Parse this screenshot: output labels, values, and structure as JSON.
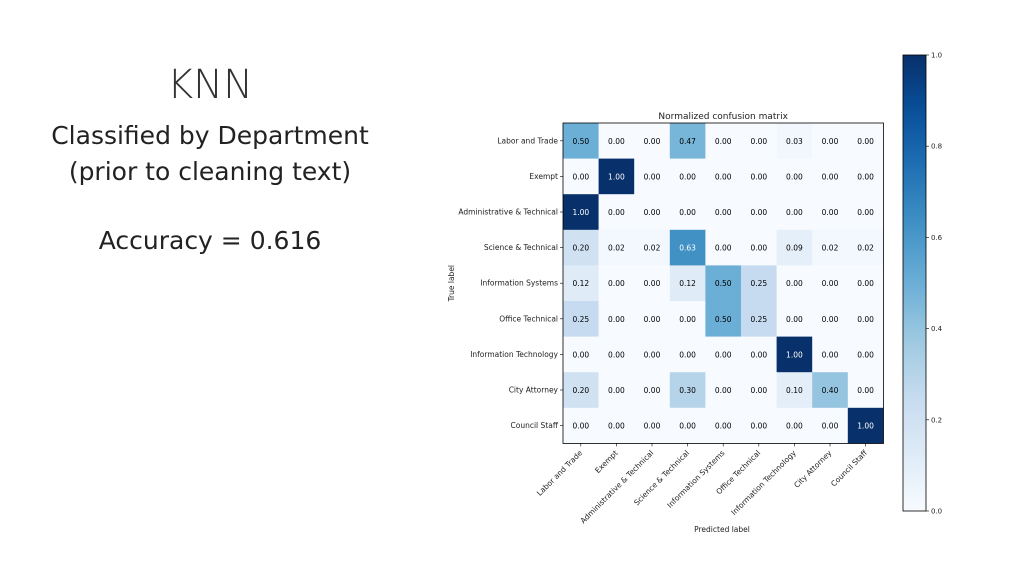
{
  "slide": {
    "title": "KNN",
    "subtitle_line1": "Classified by Department",
    "subtitle_line2": "(prior to cleaning text)",
    "accuracy": "Accuracy = 0.616"
  },
  "colors": {
    "low": "#f7fbff",
    "high": "#08306b",
    "text_dark": "#000000",
    "text_light": "#ffffff"
  },
  "chart_data": {
    "type": "heatmap",
    "title": "Normalized confusion matrix",
    "xlabel": "Predicted label",
    "ylabel": "True label",
    "rows": [
      "Labor and Trade",
      "Exempt",
      "Administrative & Technical",
      "Science & Technical",
      "Information Systems",
      "Office Technical",
      "Information Technology",
      "City Attorney",
      "Council Staff"
    ],
    "cols": [
      "Labor and Trade",
      "Exempt",
      "Administrative & Technical",
      "Science & Technical",
      "Information Systems",
      "Office Technical",
      "Information Technology",
      "City Attorney",
      "Council Staff"
    ],
    "values": [
      [
        0.5,
        0.0,
        0.0,
        0.47,
        0.0,
        0.0,
        0.03,
        0.0,
        0.0
      ],
      [
        0.0,
        1.0,
        0.0,
        0.0,
        0.0,
        0.0,
        0.0,
        0.0,
        0.0
      ],
      [
        1.0,
        0.0,
        0.0,
        0.0,
        0.0,
        0.0,
        0.0,
        0.0,
        0.0
      ],
      [
        0.2,
        0.02,
        0.02,
        0.63,
        0.0,
        0.0,
        0.09,
        0.02,
        0.02
      ],
      [
        0.12,
        0.0,
        0.0,
        0.12,
        0.5,
        0.25,
        0.0,
        0.0,
        0.0
      ],
      [
        0.25,
        0.0,
        0.0,
        0.0,
        0.5,
        0.25,
        0.0,
        0.0,
        0.0
      ],
      [
        0.0,
        0.0,
        0.0,
        0.0,
        0.0,
        0.0,
        1.0,
        0.0,
        0.0
      ],
      [
        0.2,
        0.0,
        0.0,
        0.3,
        0.0,
        0.0,
        0.1,
        0.4,
        0.0
      ],
      [
        0.0,
        0.0,
        0.0,
        0.0,
        0.0,
        0.0,
        0.0,
        0.0,
        1.0
      ]
    ],
    "colorbar": {
      "range": [
        0.0,
        1.0
      ],
      "ticks": [
        "0.0",
        "0.2",
        "0.4",
        "0.6",
        "0.8",
        "1.0"
      ],
      "cmap": "Blues"
    }
  }
}
